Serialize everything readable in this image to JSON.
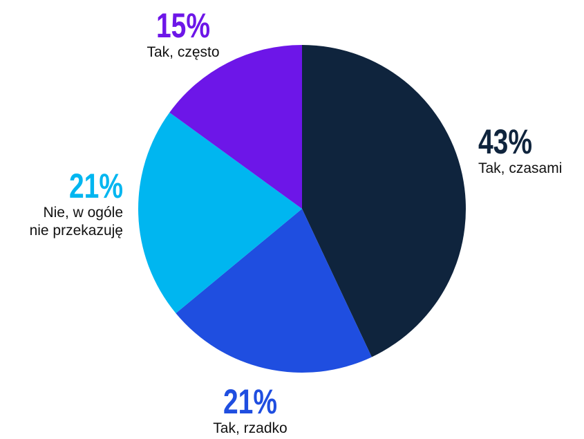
{
  "chart_data": {
    "type": "pie",
    "categories": [
      "Tak, czasami",
      "Tak, rzadko",
      "Nie, w ogóle nie przekazuję",
      "Tak, często"
    ],
    "values": [
      43,
      21,
      21,
      15
    ],
    "value_labels": [
      "43%",
      "21%",
      "21%",
      "15%"
    ],
    "label_lines": [
      [
        "Tak, czasami"
      ],
      [
        "Tak, rzadko"
      ],
      [
        "Nie, w ogóle",
        "nie przekazuję"
      ],
      [
        "Tak, często"
      ]
    ],
    "colors": [
      "#0f243d",
      "#1f4ee0",
      "#00b6f0",
      "#6d16e8"
    ],
    "start_angle_deg": 0,
    "direction": "clockwise",
    "legend": "none",
    "title": ""
  }
}
